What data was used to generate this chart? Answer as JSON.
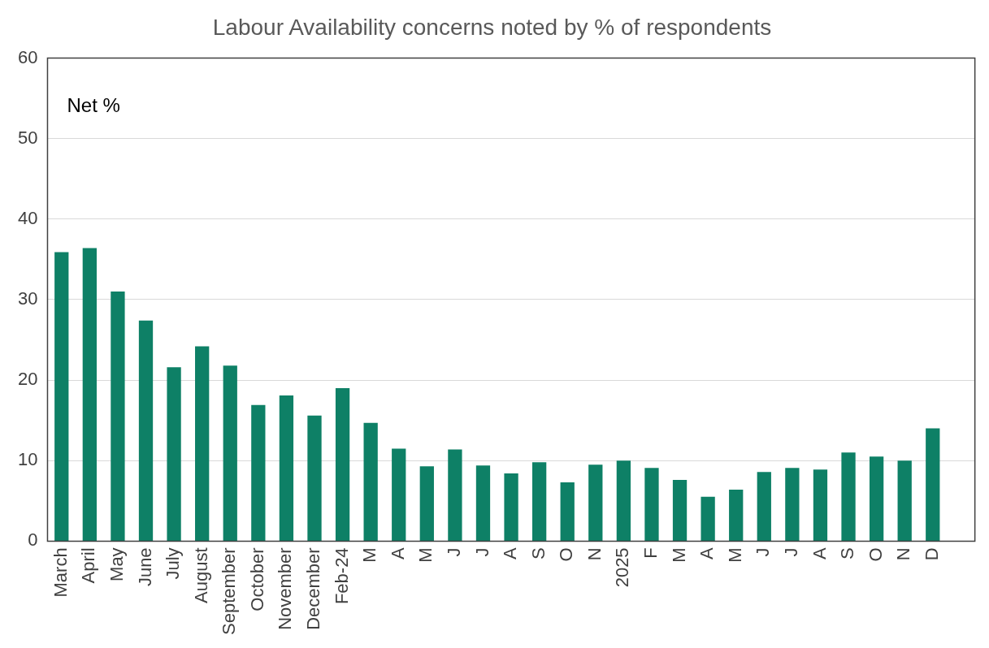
{
  "chart_data": {
    "type": "bar",
    "title": "Labour Availability concerns noted by % of respondents",
    "categories": [
      "March",
      "April",
      "May",
      "June",
      "July",
      "August",
      "September",
      "October",
      "November",
      "December",
      "Feb-24",
      "M",
      "A",
      "M",
      "J",
      "J",
      "A",
      "S",
      "O",
      "N",
      "2025",
      "F",
      "M",
      "A",
      "M",
      "J",
      "J",
      "A",
      "S",
      "O",
      "N",
      "D",
      null
    ],
    "values": [
      35.9,
      36.4,
      31.0,
      27.4,
      21.6,
      24.2,
      21.8,
      16.9,
      18.1,
      15.6,
      19.0,
      14.7,
      11.5,
      9.3,
      11.4,
      9.4,
      8.4,
      9.8,
      7.3,
      9.5,
      10.0,
      9.1,
      7.6,
      5.5,
      6.4,
      8.6,
      9.1,
      8.9,
      11.0,
      10.5,
      10.0,
      14.0,
      null
    ],
    "color": "#0e8066",
    "ylim": [
      0,
      60
    ],
    "yticks": [
      0,
      10,
      20,
      30,
      40,
      50,
      60
    ],
    "grid": "y",
    "legend": false,
    "annotations": [
      "Net %"
    ]
  }
}
